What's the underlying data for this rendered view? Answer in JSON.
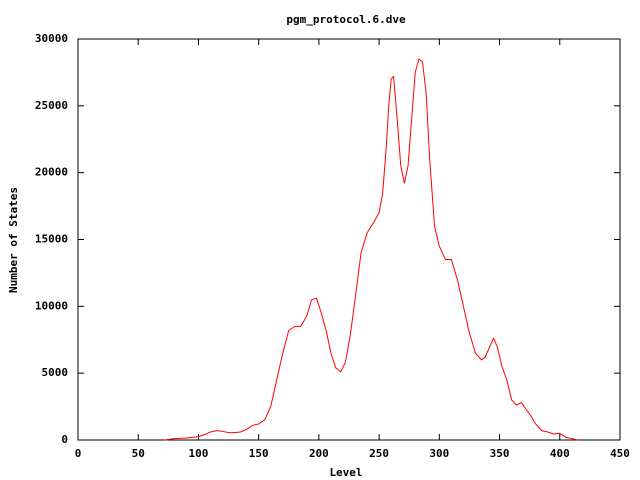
{
  "chart_data": {
    "type": "line",
    "title": "pgm_protocol.6.dve",
    "xlabel": "Level",
    "ylabel": "Number of States",
    "x": [
      72,
      80,
      90,
      100,
      105,
      110,
      115,
      120,
      125,
      130,
      135,
      140,
      145,
      150,
      155,
      160,
      165,
      170,
      175,
      180,
      185,
      190,
      194,
      198,
      202,
      206,
      210,
      214,
      218,
      222,
      226,
      230,
      235,
      240,
      245,
      250,
      253,
      256,
      258,
      260,
      262,
      265,
      268,
      271,
      274,
      277,
      280,
      283,
      286,
      289,
      292,
      296,
      300,
      305,
      310,
      315,
      320,
      325,
      330,
      335,
      338,
      342,
      345,
      348,
      352,
      356,
      360,
      364,
      368,
      372,
      376,
      380,
      385,
      390,
      395,
      400,
      405,
      410,
      415
    ],
    "series": [
      {
        "name": "pgm_protocol.6.dve",
        "color": "#ff0000",
        "values": [
          0,
          100,
          150,
          250,
          400,
          600,
          700,
          650,
          550,
          550,
          600,
          800,
          1100,
          1200,
          1500,
          2500,
          4500,
          6500,
          8200,
          8500,
          8500,
          9300,
          10500,
          10600,
          9500,
          8200,
          6500,
          5400,
          5100,
          5800,
          7800,
          10500,
          14000,
          15500,
          16200,
          17000,
          18500,
          22000,
          25000,
          27000,
          27200,
          24000,
          20500,
          19200,
          20500,
          24000,
          27500,
          28500,
          28300,
          26000,
          21000,
          16000,
          14500,
          13500,
          13500,
          12000,
          10000,
          8000,
          6500,
          6000,
          6200,
          7000,
          7600,
          7000,
          5500,
          4500,
          3000,
          2600,
          2800,
          2300,
          1800,
          1200,
          700,
          600,
          450,
          500,
          200,
          100,
          0
        ]
      }
    ],
    "xlim": [
      0,
      450
    ],
    "ylim": [
      0,
      30000
    ],
    "xticks": [
      0,
      50,
      100,
      150,
      200,
      250,
      300,
      350,
      400,
      450
    ],
    "yticks": [
      0,
      5000,
      10000,
      15000,
      20000,
      25000,
      30000
    ]
  }
}
